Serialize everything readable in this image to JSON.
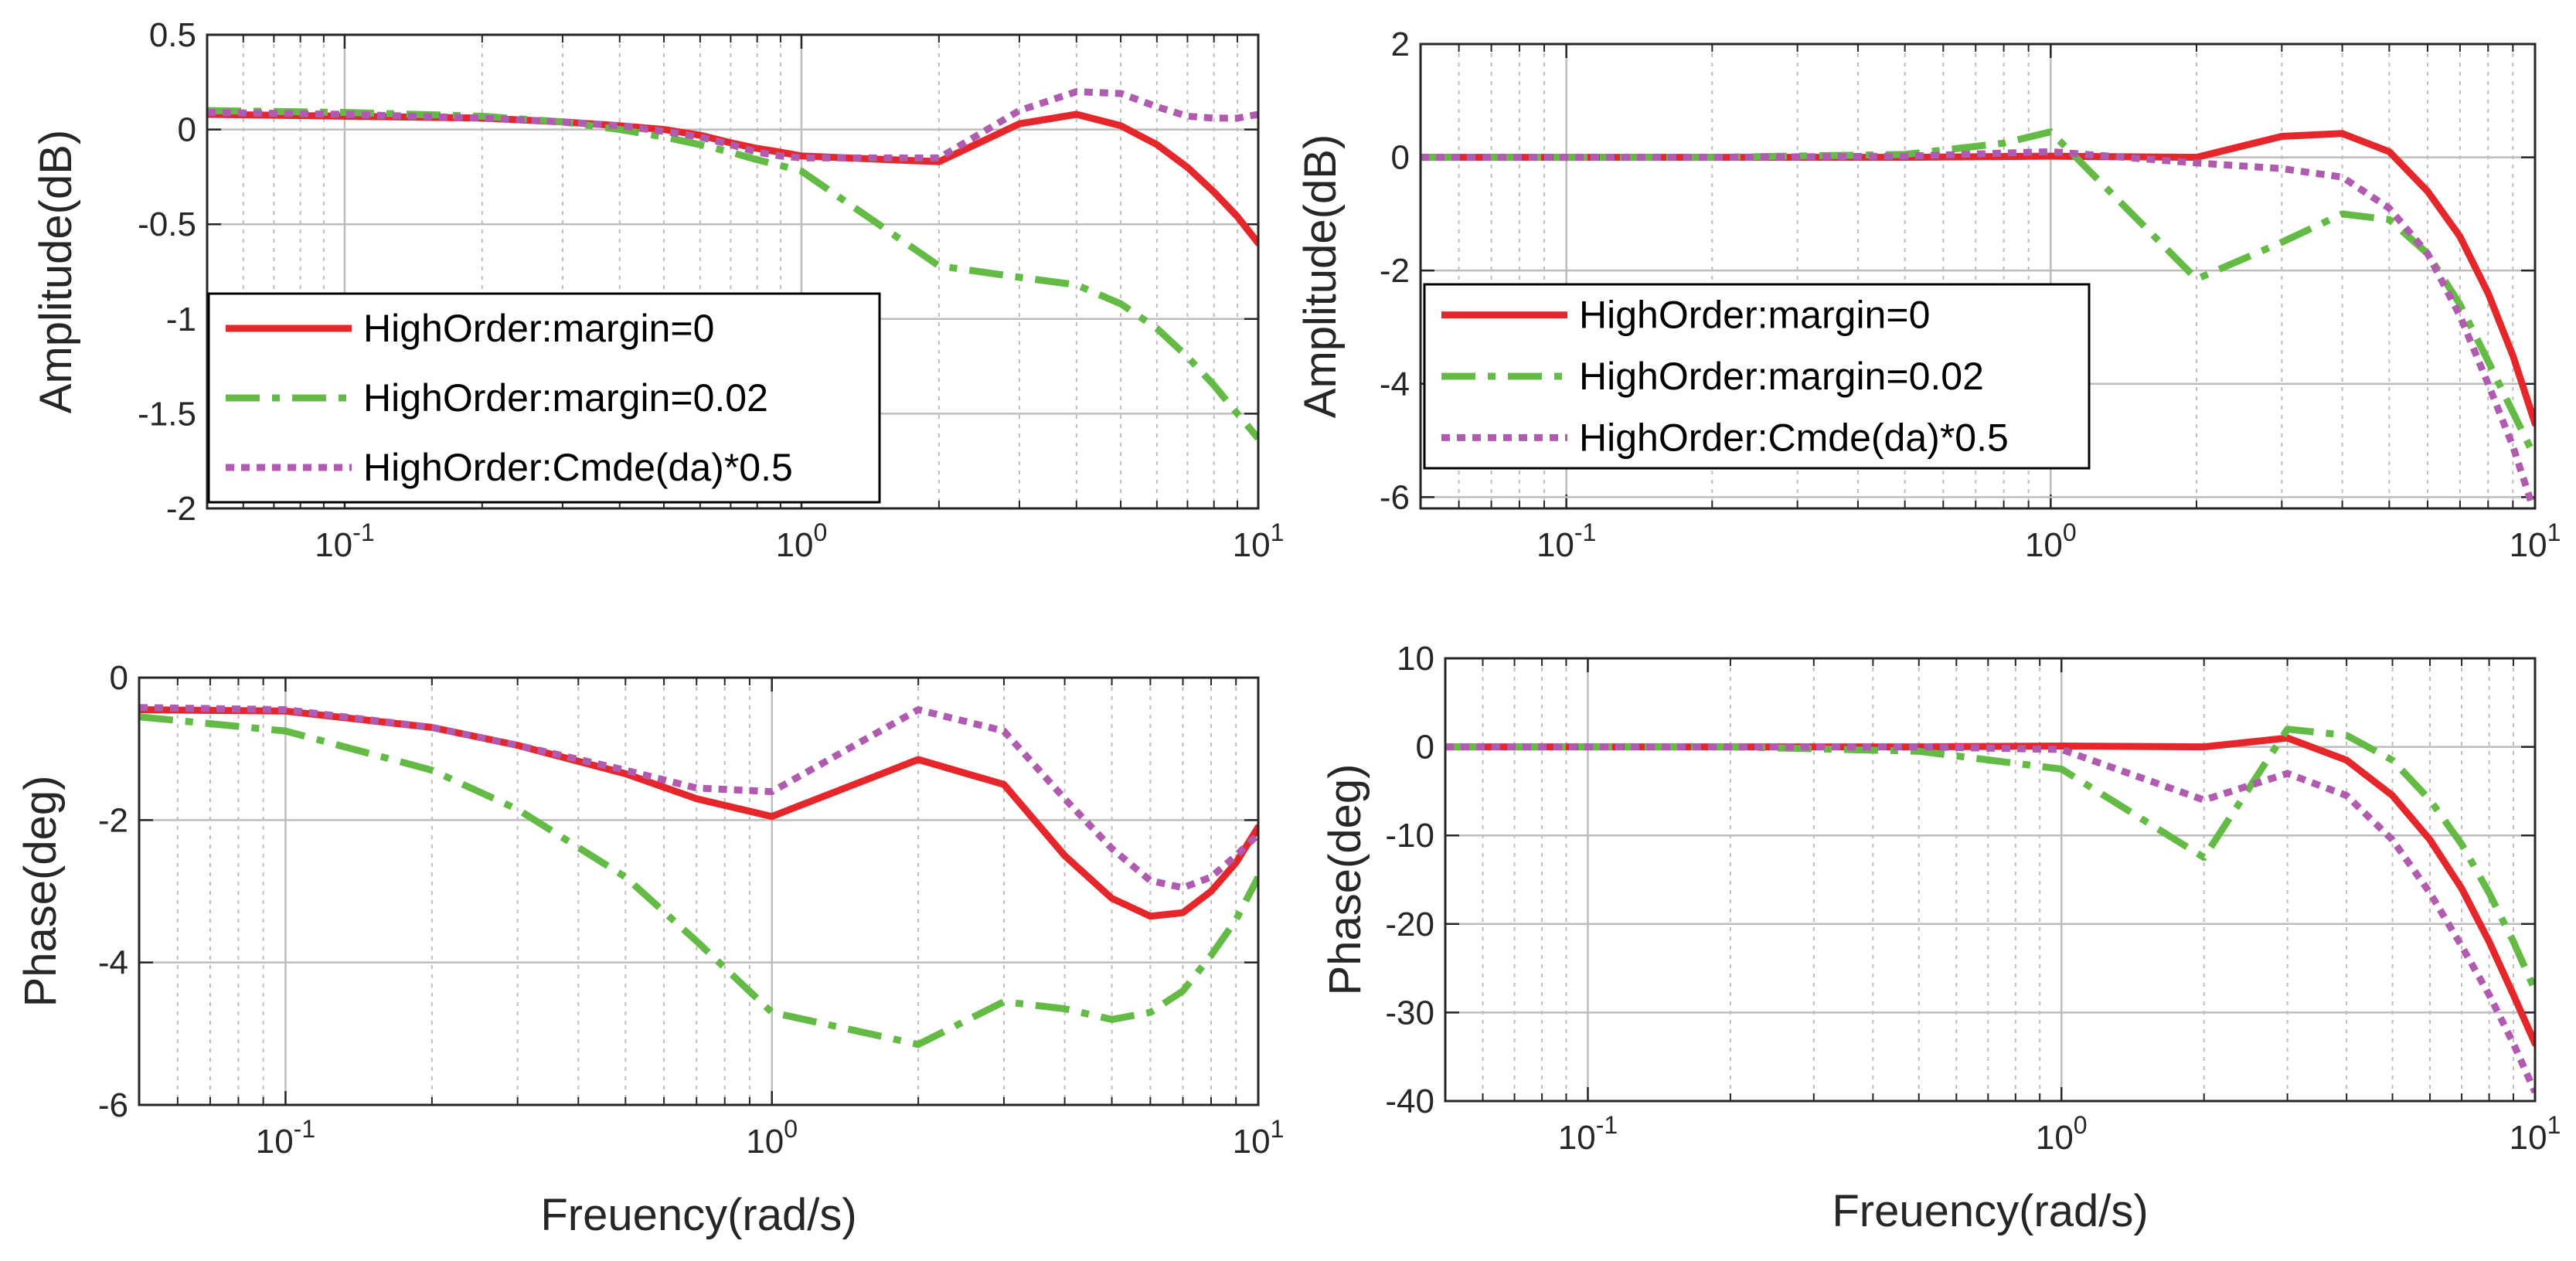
{
  "colors": {
    "red": "#e5262b",
    "green": "#63bb46",
    "purple": "#b05bb0",
    "grid": "#bdbdbd",
    "axis": "#262626"
  },
  "chart_data": [
    {
      "id": "top-left",
      "type": "line",
      "xscale": "log",
      "xlim": [
        0.05,
        10
      ],
      "ylim": [
        -2,
        0.5
      ],
      "yticks": [
        0.5,
        0,
        -0.5,
        -1,
        -1.5,
        -2
      ],
      "ytick_labels": [
        "0.5",
        "0",
        "-0.5",
        "-1",
        "-1.5",
        "-2"
      ],
      "xtick_labels": [
        {
          "base": "10",
          "exp": "-1"
        },
        {
          "base": "10",
          "exp": "0"
        },
        {
          "base": "10",
          "exp": "1"
        }
      ],
      "ylabel": "Amplitude(dB)",
      "xlabel": "",
      "legend": {
        "position": "lower-left"
      },
      "series": [
        {
          "name": "HighOrder:margin=0",
          "style": "solid",
          "color": "red",
          "x": [
            0.05,
            0.1,
            0.2,
            0.3,
            0.4,
            0.5,
            0.6,
            0.7,
            0.8,
            0.9,
            1,
            2,
            3,
            4,
            5,
            6,
            7,
            8,
            9,
            10
          ],
          "y": [
            0.08,
            0.07,
            0.06,
            0.04,
            0.02,
            0.0,
            -0.03,
            -0.07,
            -0.1,
            -0.12,
            -0.14,
            -0.17,
            0.03,
            0.08,
            0.02,
            -0.08,
            -0.2,
            -0.33,
            -0.46,
            -0.6
          ]
        },
        {
          "name": "HighOrder:margin=0.02",
          "style": "dashdot",
          "color": "green",
          "x": [
            0.05,
            0.1,
            0.2,
            0.3,
            0.4,
            0.5,
            0.6,
            0.7,
            0.8,
            0.9,
            1,
            2,
            3,
            4,
            5,
            6,
            7,
            8,
            9,
            10
          ],
          "y": [
            0.1,
            0.09,
            0.07,
            0.04,
            0.0,
            -0.04,
            -0.08,
            -0.12,
            -0.16,
            -0.19,
            -0.22,
            -0.72,
            -0.78,
            -0.82,
            -0.92,
            -1.05,
            -1.2,
            -1.35,
            -1.5,
            -1.63
          ]
        },
        {
          "name": "HighOrder:Cmde(da)*0.5",
          "style": "dotted",
          "color": "purple",
          "x": [
            0.05,
            0.1,
            0.2,
            0.3,
            0.4,
            0.5,
            0.6,
            0.7,
            0.8,
            0.9,
            1,
            2,
            3,
            4,
            5,
            6,
            7,
            8,
            9,
            10
          ],
          "y": [
            0.09,
            0.08,
            0.06,
            0.04,
            0.02,
            -0.01,
            -0.04,
            -0.08,
            -0.12,
            -0.14,
            -0.15,
            -0.15,
            0.1,
            0.2,
            0.19,
            0.12,
            0.07,
            0.06,
            0.06,
            0.08
          ]
        }
      ]
    },
    {
      "id": "top-right",
      "type": "line",
      "xscale": "log",
      "xlim": [
        0.05,
        10
      ],
      "ylim": [
        -6.2,
        2
      ],
      "yticks": [
        2,
        0,
        -2,
        -4,
        -6
      ],
      "ytick_labels": [
        "2",
        "0",
        "-2",
        "-4",
        "-6"
      ],
      "xtick_labels": [
        {
          "base": "10",
          "exp": "-1"
        },
        {
          "base": "10",
          "exp": "0"
        },
        {
          "base": "10",
          "exp": "1"
        }
      ],
      "ylabel": "Amplitude(dB)",
      "xlabel": "",
      "legend": {
        "position": "lower-left"
      },
      "series": [
        {
          "name": "HighOrder:margin=0",
          "style": "solid",
          "color": "red",
          "x": [
            0.05,
            0.1,
            0.2,
            0.5,
            1,
            2,
            3,
            4,
            5,
            6,
            7,
            8,
            9,
            10
          ],
          "y": [
            0,
            0,
            0,
            0,
            0.02,
            0.0,
            0.37,
            0.42,
            0.1,
            -0.6,
            -1.4,
            -2.4,
            -3.5,
            -4.7
          ]
        },
        {
          "name": "HighOrder:margin=0.02",
          "style": "dashdot",
          "color": "green",
          "x": [
            0.05,
            0.1,
            0.2,
            0.5,
            0.8,
            1,
            2,
            3,
            4,
            5,
            6,
            7,
            8,
            9,
            10
          ],
          "y": [
            0,
            0,
            0,
            0.05,
            0.25,
            0.45,
            -2.15,
            -1.5,
            -1.0,
            -1.1,
            -1.7,
            -2.6,
            -3.6,
            -4.5,
            -5.3
          ]
        },
        {
          "name": "HighOrder:Cmde(da)*0.5",
          "style": "dotted",
          "color": "purple",
          "x": [
            0.05,
            0.1,
            0.2,
            0.5,
            1,
            2,
            3,
            4,
            5,
            6,
            7,
            8,
            9,
            10
          ],
          "y": [
            0,
            0,
            0,
            0.02,
            0.1,
            -0.1,
            -0.2,
            -0.35,
            -0.9,
            -1.7,
            -2.8,
            -4.0,
            -5.1,
            -6.3
          ]
        }
      ]
    },
    {
      "id": "bottom-left",
      "type": "line",
      "xscale": "log",
      "xlim": [
        0.05,
        10
      ],
      "ylim": [
        -6,
        0
      ],
      "yticks": [
        0,
        -2,
        -4,
        -6
      ],
      "ytick_labels": [
        "0",
        "-2",
        "-4",
        "-6"
      ],
      "xtick_labels": [
        {
          "base": "10",
          "exp": "-1"
        },
        {
          "base": "10",
          "exp": "0"
        },
        {
          "base": "10",
          "exp": "1"
        }
      ],
      "ylabel": "Phase(deg)",
      "xlabel": "Freuency(rad/s)",
      "series": [
        {
          "name": "HighOrder:margin=0",
          "style": "solid",
          "color": "red",
          "x": [
            0.05,
            0.1,
            0.2,
            0.3,
            0.5,
            0.7,
            1,
            2,
            3,
            4,
            5,
            6,
            7,
            8,
            9,
            10
          ],
          "y": [
            -0.45,
            -0.47,
            -0.7,
            -0.95,
            -1.35,
            -1.7,
            -1.95,
            -1.15,
            -1.5,
            -2.5,
            -3.1,
            -3.35,
            -3.3,
            -3.0,
            -2.6,
            -2.1
          ]
        },
        {
          "name": "HighOrder:margin=0.02",
          "style": "dashdot",
          "color": "green",
          "x": [
            0.05,
            0.1,
            0.2,
            0.3,
            0.5,
            0.7,
            1,
            2,
            3,
            4,
            5,
            6,
            7,
            8,
            9,
            10
          ],
          "y": [
            -0.55,
            -0.75,
            -1.3,
            -1.85,
            -2.8,
            -3.7,
            -4.7,
            -5.15,
            -4.55,
            -4.65,
            -4.8,
            -4.7,
            -4.4,
            -3.9,
            -3.4,
            -2.8
          ]
        },
        {
          "name": "HighOrder:Cmde(da)*0.5",
          "style": "dotted",
          "color": "purple",
          "x": [
            0.05,
            0.1,
            0.2,
            0.3,
            0.5,
            0.7,
            1,
            2,
            3,
            4,
            5,
            6,
            7,
            8,
            9,
            10
          ],
          "y": [
            -0.42,
            -0.45,
            -0.7,
            -0.95,
            -1.3,
            -1.55,
            -1.6,
            -0.45,
            -0.75,
            -1.7,
            -2.4,
            -2.85,
            -2.95,
            -2.8,
            -2.5,
            -2.2
          ]
        }
      ]
    },
    {
      "id": "bottom-right",
      "type": "line",
      "xscale": "log",
      "xlim": [
        0.05,
        10
      ],
      "ylim": [
        -40,
        10
      ],
      "yticks": [
        10,
        0,
        -10,
        -20,
        -30,
        -40
      ],
      "ytick_labels": [
        "10",
        "0",
        "-10",
        "-20",
        "-30",
        "-40"
      ],
      "xtick_labels": [
        {
          "base": "10",
          "exp": "-1"
        },
        {
          "base": "10",
          "exp": "0"
        },
        {
          "base": "10",
          "exp": "1"
        }
      ],
      "ylabel": "Phase(deg)",
      "xlabel": "Freuency(rad/s)",
      "series": [
        {
          "name": "HighOrder:margin=0",
          "style": "solid",
          "color": "red",
          "x": [
            0.05,
            0.1,
            0.2,
            0.5,
            1,
            2,
            3,
            4,
            5,
            6,
            7,
            8,
            9,
            10
          ],
          "y": [
            0,
            0,
            0,
            0,
            0.1,
            0.0,
            1.0,
            -1.5,
            -5.5,
            -10.5,
            -16,
            -22,
            -28,
            -33.5
          ]
        },
        {
          "name": "HighOrder:margin=0.02",
          "style": "dashdot",
          "color": "green",
          "x": [
            0.05,
            0.1,
            0.2,
            0.5,
            1,
            2,
            3,
            4,
            5,
            6,
            7,
            8,
            9,
            10
          ],
          "y": [
            0,
            0,
            0,
            -0.5,
            -2.5,
            -12.5,
            2.0,
            1.3,
            -1.5,
            -6,
            -11,
            -16.5,
            -22,
            -27.5
          ]
        },
        {
          "name": "HighOrder:Cmde(da)*0.5",
          "style": "dotted",
          "color": "purple",
          "x": [
            0.05,
            0.1,
            0.2,
            0.5,
            1,
            2,
            3,
            4,
            5,
            6,
            7,
            8,
            9,
            10
          ],
          "y": [
            0,
            0,
            0,
            0,
            -0.3,
            -6.0,
            -3.0,
            -5.5,
            -10.5,
            -16.5,
            -22.5,
            -28,
            -33.5,
            -39
          ]
        }
      ]
    }
  ]
}
